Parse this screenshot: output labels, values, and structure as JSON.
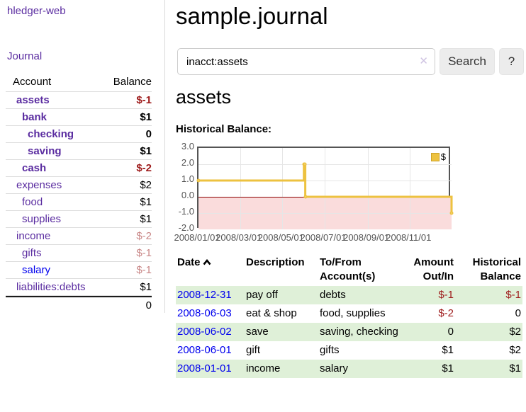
{
  "app": {
    "brand": "hledger-web",
    "nav_journal": "Journal"
  },
  "sidebar": {
    "table": {
      "col_account": "Account",
      "col_balance": "Balance"
    },
    "accounts": [
      {
        "name": "assets",
        "balance": "$-1",
        "depth": 1,
        "bold": true,
        "name_style": "purple",
        "amount_style": "neg-strong"
      },
      {
        "name": "bank",
        "balance": "$1",
        "depth": 2,
        "bold": true,
        "name_style": "purple",
        "amount_style": "normal"
      },
      {
        "name": "checking",
        "balance": "0",
        "depth": 3,
        "bold": true,
        "name_style": "purple",
        "amount_style": "normal"
      },
      {
        "name": "saving",
        "balance": "$1",
        "depth": 3,
        "bold": true,
        "name_style": "purple",
        "amount_style": "normal"
      },
      {
        "name": "cash",
        "balance": "$-2",
        "depth": 2,
        "bold": true,
        "name_style": "purple",
        "amount_style": "neg-strong"
      },
      {
        "name": "expenses",
        "balance": "$2",
        "depth": 1,
        "bold": false,
        "name_style": "purple",
        "amount_style": "normal"
      },
      {
        "name": "food",
        "balance": "$1",
        "depth": 2,
        "bold": false,
        "name_style": "purple",
        "amount_style": "normal"
      },
      {
        "name": "supplies",
        "balance": "$1",
        "depth": 2,
        "bold": false,
        "name_style": "purple",
        "amount_style": "normal"
      },
      {
        "name": "income",
        "balance": "$-2",
        "depth": 1,
        "bold": false,
        "name_style": "purple",
        "amount_style": "neg-soft"
      },
      {
        "name": "gifts",
        "balance": "$-1",
        "depth": 2,
        "bold": false,
        "name_style": "purple",
        "amount_style": "neg-soft"
      },
      {
        "name": "salary",
        "balance": "$-1",
        "depth": 2,
        "bold": false,
        "name_style": "blue",
        "amount_style": "neg-soft"
      },
      {
        "name": "liabilities:debts",
        "balance": "$1",
        "depth": 1,
        "bold": false,
        "name_style": "purple",
        "amount_style": "normal"
      }
    ],
    "total": "0"
  },
  "header": {
    "title": "sample.journal"
  },
  "search": {
    "value": "inacct:assets",
    "clear_icon": "✕",
    "button": "Search",
    "help": "?"
  },
  "account_page": {
    "heading": "assets",
    "chart_label": "Historical Balance:"
  },
  "chart_data": {
    "type": "line",
    "step": true,
    "series": [
      {
        "name": "$",
        "color": "#edc240",
        "points": [
          [
            "2008-01-01",
            1
          ],
          [
            "2008-06-01",
            2
          ],
          [
            "2008-06-02",
            2
          ],
          [
            "2008-06-03",
            0
          ],
          [
            "2008-12-31",
            -1
          ]
        ]
      }
    ],
    "ylim": [
      -2,
      3
    ],
    "yticks": [
      3.0,
      2.0,
      1.0,
      0.0,
      -1.0,
      -2.0
    ],
    "xticks": [
      "2008/01/01",
      "2008/03/01",
      "2008/05/01",
      "2008/07/01",
      "2008/09/01",
      "2008/11/01"
    ],
    "xlim": [
      "2008-01-01",
      "2008-12-31"
    ],
    "legend": "$",
    "legend_position": "top-right",
    "grid": true,
    "negative_region_color": "#fadcdc",
    "zero_line_color": "#8b0000"
  },
  "register": {
    "columns": [
      {
        "label": "Date",
        "sorted": "asc"
      },
      {
        "label": "Description"
      },
      {
        "label": "To/From Account(s)"
      },
      {
        "label": "Amount Out/In"
      },
      {
        "label": "Historical Balance"
      }
    ],
    "rows": [
      {
        "date": "2008-12-31",
        "description": "pay off",
        "accounts": "debts",
        "amount": "$-1",
        "amount_neg": true,
        "balance": "$-1",
        "balance_neg": true
      },
      {
        "date": "2008-06-03",
        "description": "eat & shop",
        "accounts": "food, supplies",
        "amount": "$-2",
        "amount_neg": true,
        "balance": "0",
        "balance_neg": false
      },
      {
        "date": "2008-06-02",
        "description": "save",
        "accounts": "saving, checking",
        "amount": "0",
        "amount_neg": false,
        "balance": "$2",
        "balance_neg": false
      },
      {
        "date": "2008-06-01",
        "description": "gift",
        "accounts": "gifts",
        "amount": "$1",
        "amount_neg": false,
        "balance": "$2",
        "balance_neg": false
      },
      {
        "date": "2008-01-01",
        "description": "income",
        "accounts": "salary",
        "amount": "$1",
        "amount_neg": false,
        "balance": "$1",
        "balance_neg": false
      }
    ]
  }
}
